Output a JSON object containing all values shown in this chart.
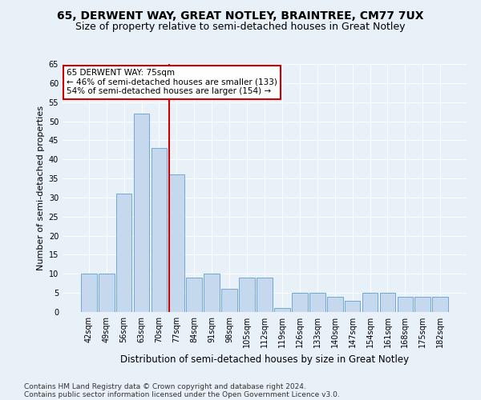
{
  "title1": "65, DERWENT WAY, GREAT NOTLEY, BRAINTREE, CM77 7UX",
  "title2": "Size of property relative to semi-detached houses in Great Notley",
  "xlabel": "Distribution of semi-detached houses by size in Great Notley",
  "ylabel": "Number of semi-detached properties",
  "categories": [
    "42sqm",
    "49sqm",
    "56sqm",
    "63sqm",
    "70sqm",
    "77sqm",
    "84sqm",
    "91sqm",
    "98sqm",
    "105sqm",
    "112sqm",
    "119sqm",
    "126sqm",
    "133sqm",
    "140sqm",
    "147sqm",
    "154sqm",
    "161sqm",
    "168sqm",
    "175sqm",
    "182sqm"
  ],
  "values": [
    10,
    10,
    31,
    52,
    43,
    36,
    9,
    10,
    6,
    9,
    9,
    1,
    5,
    5,
    4,
    3,
    5,
    5,
    4,
    4,
    4
  ],
  "bar_color": "#c5d8ed",
  "bar_edge_color": "#6fa8d6",
  "vline_x": 4.57,
  "vline_color": "#cc0000",
  "annotation_line1": "65 DERWENT WAY: 75sqm",
  "annotation_line2": "← 46% of semi-detached houses are smaller (133)",
  "annotation_line3": "54% of semi-detached houses are larger (154) →",
  "annotation_box_color": "#ffffff",
  "annotation_box_edge": "#cc0000",
  "ylim": [
    0,
    65
  ],
  "yticks": [
    0,
    5,
    10,
    15,
    20,
    25,
    30,
    35,
    40,
    45,
    50,
    55,
    60,
    65
  ],
  "footnote1": "Contains HM Land Registry data © Crown copyright and database right 2024.",
  "footnote2": "Contains public sector information licensed under the Open Government Licence v3.0.",
  "bg_color": "#e8f0f8",
  "plot_bg_color": "#e8f0f8",
  "title1_fontsize": 10,
  "title2_fontsize": 9,
  "xlabel_fontsize": 8.5,
  "ylabel_fontsize": 8,
  "tick_fontsize": 7,
  "footnote_fontsize": 6.5,
  "annotation_fontsize": 7.5
}
